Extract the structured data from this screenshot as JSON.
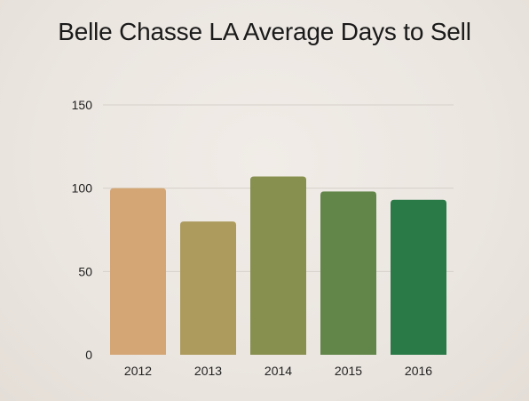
{
  "chart_data": {
    "type": "bar",
    "title": "Belle Chasse LA Average Days to Sell",
    "categories": [
      "2012",
      "2013",
      "2014",
      "2015",
      "2016"
    ],
    "values": [
      100,
      80,
      107,
      98,
      93
    ],
    "bar_colors": [
      "#d4a676",
      "#ac9b5c",
      "#889050",
      "#62864a",
      "#2a7a48"
    ],
    "xlabel": "",
    "ylabel": "",
    "ylim": [
      0,
      150
    ],
    "yticks": [
      "0",
      "50",
      "100",
      "150"
    ],
    "grid": true,
    "legend": "none"
  }
}
